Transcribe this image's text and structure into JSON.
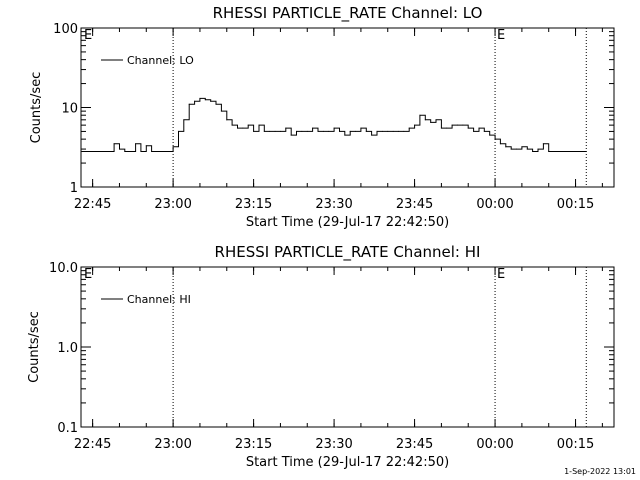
{
  "footer_date": "1-Sep-2022 13:01",
  "chart_data": [
    {
      "type": "line",
      "title": "RHESSI PARTICLE_RATE Channel: LO",
      "xlabel": "Start Time (29-Jul-17 22:42:50)",
      "ylabel": "Counts/sec",
      "yscale": "log",
      "ylim": [
        1,
        100
      ],
      "xlim": [
        "22:42:50",
        "00:22:10"
      ],
      "x_ticks": [
        "22:45",
        "23:00",
        "23:15",
        "23:30",
        "23:45",
        "00:00",
        "00:15"
      ],
      "y_ticks": [
        "1",
        "10",
        "100"
      ],
      "legend": {
        "entries": [
          "Channel: LO"
        ],
        "placement": "top-left"
      },
      "markers": [
        {
          "time": "23:00",
          "label": ""
        },
        {
          "time": "00:00",
          "label": "E"
        },
        {
          "time": "00:17",
          "label": ""
        }
      ],
      "corner_label": "E",
      "series": [
        {
          "name": "Channel: LO",
          "color": "#000000",
          "x": [
            "22:43",
            "22:44",
            "22:45",
            "22:46",
            "22:47",
            "22:48",
            "22:49",
            "22:50",
            "22:51",
            "22:52",
            "22:53",
            "22:54",
            "22:55",
            "22:56",
            "22:57",
            "22:58",
            "22:59",
            "23:00",
            "23:01",
            "23:02",
            "23:03",
            "23:04",
            "23:05",
            "23:06",
            "23:07",
            "23:08",
            "23:09",
            "23:10",
            "23:11",
            "23:12",
            "23:13",
            "23:14",
            "23:15",
            "23:16",
            "23:17",
            "23:18",
            "23:19",
            "23:20",
            "23:21",
            "23:22",
            "23:23",
            "23:24",
            "23:25",
            "23:26",
            "23:27",
            "23:28",
            "23:29",
            "23:30",
            "23:31",
            "23:32",
            "23:33",
            "23:34",
            "23:35",
            "23:36",
            "23:37",
            "23:38",
            "23:39",
            "23:40",
            "23:41",
            "23:42",
            "23:43",
            "23:44",
            "23:45",
            "23:46",
            "23:47",
            "23:48",
            "23:49",
            "23:50",
            "23:51",
            "23:52",
            "23:53",
            "23:54",
            "23:55",
            "23:56",
            "23:57",
            "23:58",
            "23:59",
            "00:00",
            "00:01",
            "00:02",
            "00:03",
            "00:04",
            "00:05",
            "00:06",
            "00:07",
            "00:08",
            "00:09",
            "00:10",
            "00:11",
            "00:12",
            "00:13",
            "00:14",
            "00:15",
            "00:16",
            "00:17"
          ],
          "y": [
            2.8,
            2.8,
            2.8,
            2.8,
            2.8,
            2.8,
            3.5,
            3.0,
            2.8,
            2.8,
            3.5,
            2.8,
            3.3,
            2.8,
            2.8,
            2.8,
            2.8,
            3.2,
            5,
            7,
            11,
            12,
            13,
            12.5,
            12,
            11,
            9,
            7,
            6,
            5.5,
            5.5,
            6,
            5,
            6,
            5,
            5,
            5,
            5,
            5.5,
            4.5,
            5,
            5,
            5,
            5.5,
            5,
            5,
            5,
            5.5,
            5,
            4.5,
            5,
            5,
            5.5,
            5,
            4.5,
            5,
            5,
            5,
            5,
            5,
            5,
            5.5,
            6,
            8,
            7,
            6.5,
            7,
            5.5,
            5.5,
            6,
            6,
            6,
            5.5,
            5,
            5.5,
            5,
            4.5,
            4,
            3.5,
            3.2,
            3.0,
            3.0,
            3.2,
            3.0,
            2.8,
            3.0,
            3.5,
            2.8,
            2.8,
            2.8,
            2.8,
            2.8,
            2.8,
            2.8,
            2.8
          ]
        }
      ]
    },
    {
      "type": "line",
      "title": "RHESSI PARTICLE_RATE Channel: HI",
      "xlabel": "Start Time (29-Jul-17 22:42:50)",
      "ylabel": "Counts/sec",
      "yscale": "log",
      "ylim": [
        0.1,
        10
      ],
      "xlim": [
        "22:42:50",
        "00:22:10"
      ],
      "x_ticks": [
        "22:45",
        "23:00",
        "23:15",
        "23:30",
        "23:45",
        "00:00",
        "00:15"
      ],
      "y_ticks": [
        "0.1",
        "1.0",
        "10.0"
      ],
      "legend": {
        "entries": [
          "Channel: HI"
        ],
        "placement": "top-left"
      },
      "markers": [
        {
          "time": "23:00",
          "label": ""
        },
        {
          "time": "00:00",
          "label": "E"
        },
        {
          "time": "00:17",
          "label": ""
        }
      ],
      "corner_label": "E",
      "series": [
        {
          "name": "Channel: HI",
          "color": "#000000",
          "x": [],
          "y": []
        }
      ]
    }
  ]
}
